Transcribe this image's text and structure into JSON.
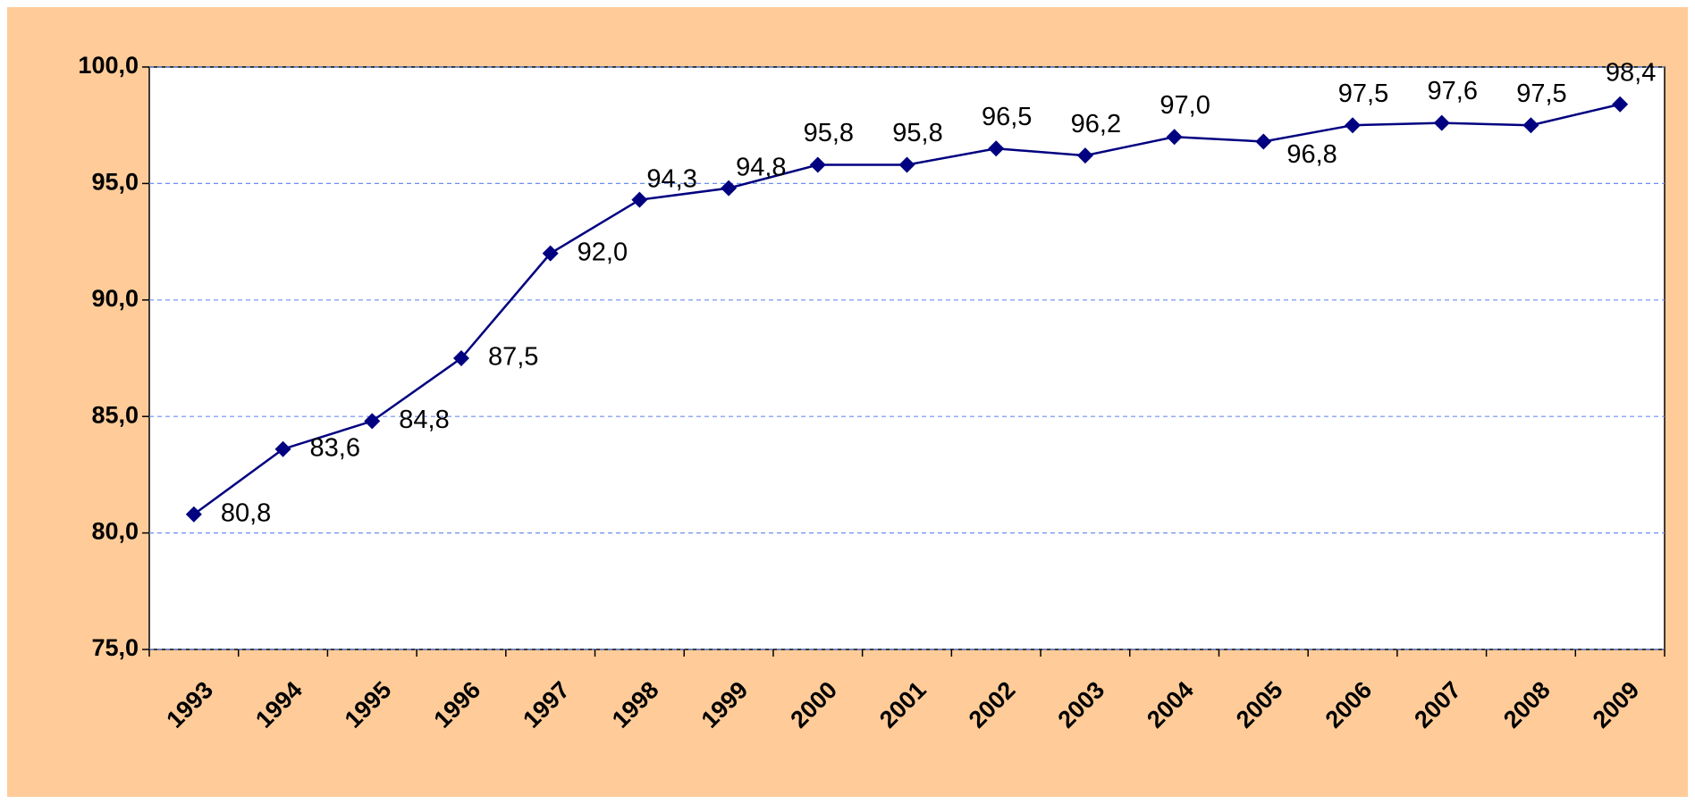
{
  "chart_data": {
    "type": "line",
    "categories": [
      "1993",
      "1994",
      "1995",
      "1996",
      "1997",
      "1998",
      "1999",
      "2000",
      "2001",
      "2002",
      "2003",
      "2004",
      "2005",
      "2006",
      "2007",
      "2008",
      "2009"
    ],
    "series": [
      {
        "color": "#000080",
        "values": [
          80.8,
          83.6,
          84.8,
          87.5,
          92.0,
          94.3,
          94.8,
          95.8,
          95.8,
          96.5,
          96.2,
          97.0,
          96.8,
          97.5,
          97.6,
          97.5,
          98.4
        ],
        "value_labels": [
          "80,8",
          "83,6",
          "84,8",
          "87,5",
          "92,0",
          "94,3",
          "94,8",
          "95,8",
          "95,8",
          "96,5",
          "96,2",
          "97,0",
          "96,8",
          "97,5",
          "97,6",
          "97,5",
          "98,4"
        ]
      }
    ],
    "ylim": [
      75,
      100
    ],
    "yticks": [
      {
        "value": 75,
        "label": "75,0"
      },
      {
        "value": 80,
        "label": "80,0"
      },
      {
        "value": 85,
        "label": "85,0"
      },
      {
        "value": 90,
        "label": "90,0"
      },
      {
        "value": 95,
        "label": "95,0"
      },
      {
        "value": 100,
        "label": "100,0"
      }
    ],
    "grid": true
  }
}
